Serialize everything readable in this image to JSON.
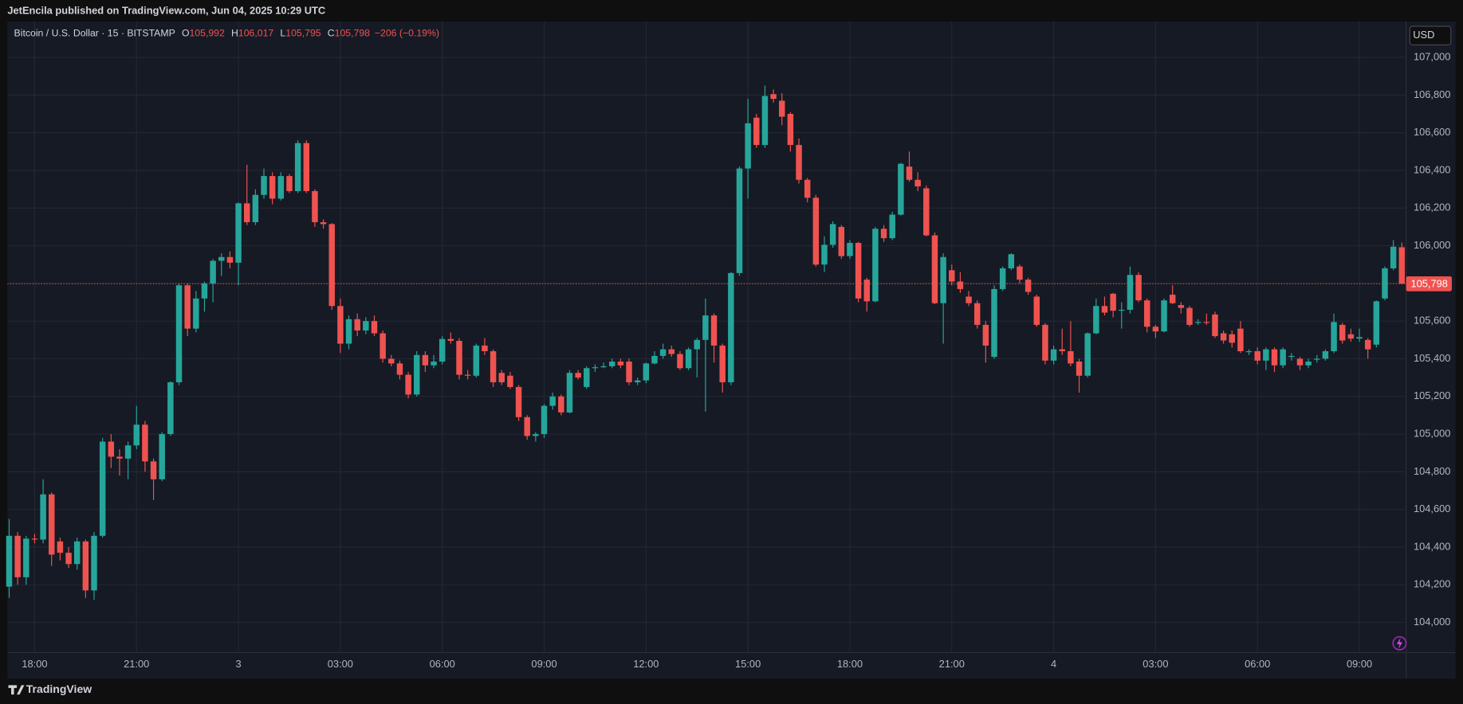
{
  "header": {
    "published": "JetEncila published on TradingView.com, Jun 04, 2025 10:29 UTC",
    "brand": "TradingView"
  },
  "chart_data": {
    "type": "candlestick",
    "symbol": "Bitcoin / U.S. Dollar · 15 · BITSTAMP",
    "ohlc": [
      {
        "key": "O",
        "text": "105,992"
      },
      {
        "key": "H",
        "text": "106,017"
      },
      {
        "key": "L",
        "text": "105,795"
      },
      {
        "key": "C",
        "text": "105,798"
      }
    ],
    "change": "−206 (−0.19%)",
    "currency": "USD",
    "up_color": "#26a69a",
    "down_color": "#ef5350",
    "last_price": {
      "value": 105798,
      "label": "105,798"
    },
    "grid": true,
    "xlim": [
      -0.2,
      164.5
    ],
    "ylim": [
      103840,
      107190
    ],
    "xticks": [
      {
        "value": 3,
        "label": "18:00"
      },
      {
        "value": 15,
        "label": "21:00"
      },
      {
        "value": 27,
        "label": "3"
      },
      {
        "value": 39,
        "label": "03:00"
      },
      {
        "value": 51,
        "label": "06:00"
      },
      {
        "value": 63,
        "label": "09:00"
      },
      {
        "value": 75,
        "label": "12:00"
      },
      {
        "value": 87,
        "label": "15:00"
      },
      {
        "value": 99,
        "label": "18:00"
      },
      {
        "value": 111,
        "label": "21:00"
      },
      {
        "value": 123,
        "label": "4"
      },
      {
        "value": 135,
        "label": "03:00"
      },
      {
        "value": 147,
        "label": "06:00"
      },
      {
        "value": 159,
        "label": "09:00"
      }
    ],
    "yticks": [
      {
        "value": 104000,
        "label": "104,000"
      },
      {
        "value": 104200,
        "label": "104,200"
      },
      {
        "value": 104400,
        "label": "104,400"
      },
      {
        "value": 104600,
        "label": "104,600"
      },
      {
        "value": 104800,
        "label": "104,800"
      },
      {
        "value": 105000,
        "label": "105,000"
      },
      {
        "value": 105200,
        "label": "105,200"
      },
      {
        "value": 105400,
        "label": "105,400"
      },
      {
        "value": 105600,
        "label": "105,600"
      },
      {
        "value": 105800,
        "label": "105,800"
      },
      {
        "value": 106000,
        "label": "106,000"
      },
      {
        "value": 106200,
        "label": "106,200"
      },
      {
        "value": 106400,
        "label": "106,400"
      },
      {
        "value": 106600,
        "label": "106,600"
      },
      {
        "value": 106800,
        "label": "106,800"
      },
      {
        "value": 107000,
        "label": "107,000"
      }
    ],
    "candles": [
      [
        104190,
        104550,
        104130,
        104460
      ],
      [
        104460,
        104480,
        104200,
        104240
      ],
      [
        104240,
        104460,
        104200,
        104445
      ],
      [
        104445,
        104470,
        104420,
        104440
      ],
      [
        104440,
        104760,
        104420,
        104680
      ],
      [
        104680,
        104690,
        104300,
        104360
      ],
      [
        104430,
        104450,
        104330,
        104370
      ],
      [
        104370,
        104400,
        104290,
        104310
      ],
      [
        104310,
        104450,
        104280,
        104430
      ],
      [
        104430,
        104440,
        104130,
        104170
      ],
      [
        104170,
        104480,
        104120,
        104460
      ],
      [
        104460,
        104980,
        104450,
        104960
      ],
      [
        104960,
        105000,
        104820,
        104880
      ],
      [
        104880,
        104920,
        104780,
        104870
      ],
      [
        104870,
        104960,
        104760,
        104940
      ],
      [
        104940,
        105150,
        104920,
        105050
      ],
      [
        105050,
        105070,
        104800,
        104855
      ],
      [
        104855,
        104870,
        104650,
        104760
      ],
      [
        104760,
        105010,
        104750,
        105000
      ],
      [
        105000,
        105280,
        104990,
        105275
      ],
      [
        105275,
        105800,
        105260,
        105790
      ],
      [
        105790,
        105800,
        105520,
        105560
      ],
      [
        105560,
        105760,
        105540,
        105720
      ],
      [
        105720,
        105810,
        105650,
        105800
      ],
      [
        105800,
        105930,
        105700,
        105920
      ],
      [
        105920,
        105960,
        105840,
        105940
      ],
      [
        105940,
        105970,
        105880,
        105910
      ],
      [
        105910,
        106230,
        105790,
        106225
      ],
      [
        106225,
        106430,
        106110,
        106125
      ],
      [
        106125,
        106300,
        106110,
        106270
      ],
      [
        106270,
        106410,
        106250,
        106370
      ],
      [
        106370,
        106390,
        106220,
        106250
      ],
      [
        106250,
        106390,
        106240,
        106370
      ],
      [
        106370,
        106380,
        106280,
        106290
      ],
      [
        106290,
        106560,
        106280,
        106545
      ],
      [
        106545,
        106560,
        106280,
        106290
      ],
      [
        106290,
        106300,
        106100,
        106125
      ],
      [
        106125,
        106140,
        106090,
        106115
      ],
      [
        106115,
        106120,
        105660,
        105680
      ],
      [
        105680,
        105720,
        105430,
        105480
      ],
      [
        105480,
        105630,
        105450,
        105610
      ],
      [
        105610,
        105640,
        105520,
        105550
      ],
      [
        105550,
        105620,
        105530,
        105600
      ],
      [
        105600,
        105630,
        105520,
        105535
      ],
      [
        105535,
        105550,
        105380,
        105400
      ],
      [
        105400,
        105420,
        105360,
        105375
      ],
      [
        105375,
        105390,
        105290,
        105315
      ],
      [
        105315,
        105330,
        105190,
        105210
      ],
      [
        105210,
        105440,
        105200,
        105420
      ],
      [
        105420,
        105440,
        105330,
        105365
      ],
      [
        105365,
        105420,
        105350,
        105385
      ],
      [
        105385,
        105520,
        105370,
        105505
      ],
      [
        105505,
        105540,
        105480,
        105495
      ],
      [
        105495,
        105510,
        105290,
        105315
      ],
      [
        105315,
        105340,
        105290,
        105310
      ],
      [
        105310,
        105480,
        105300,
        105470
      ],
      [
        105470,
        105510,
        105420,
        105440
      ],
      [
        105440,
        105450,
        105250,
        105275
      ],
      [
        105325,
        105340,
        105260,
        105275
      ],
      [
        105310,
        105330,
        105240,
        105250
      ],
      [
        105250,
        105260,
        105070,
        105090
      ],
      [
        105090,
        105100,
        104970,
        104990
      ],
      [
        104990,
        105010,
        104960,
        105000
      ],
      [
        105000,
        105160,
        104980,
        105150
      ],
      [
        105150,
        105220,
        105130,
        105200
      ],
      [
        105200,
        105210,
        105100,
        105115
      ],
      [
        105115,
        105340,
        105110,
        105325
      ],
      [
        105325,
        105340,
        105290,
        105300
      ],
      [
        105250,
        105360,
        105240,
        105350
      ],
      [
        105350,
        105370,
        105330,
        105355
      ],
      [
        105355,
        105380,
        105350,
        105360
      ],
      [
        105360,
        105400,
        105350,
        105385
      ],
      [
        105385,
        105400,
        105350,
        105365
      ],
      [
        105385,
        105400,
        105260,
        105275
      ],
      [
        105275,
        105300,
        105260,
        105285
      ],
      [
        105285,
        105380,
        105270,
        105375
      ],
      [
        105375,
        105440,
        105370,
        105415
      ],
      [
        105415,
        105480,
        105400,
        105450
      ],
      [
        105450,
        105470,
        105410,
        105425
      ],
      [
        105425,
        105440,
        105340,
        105350
      ],
      [
        105350,
        105460,
        105340,
        105450
      ],
      [
        105450,
        105510,
        105300,
        105500
      ],
      [
        105500,
        105720,
        105120,
        105630
      ],
      [
        105630,
        105640,
        105380,
        105470
      ],
      [
        105470,
        105480,
        105220,
        105275
      ],
      [
        105275,
        105860,
        105260,
        105855
      ],
      [
        105855,
        106420,
        105840,
        106410
      ],
      [
        106410,
        106780,
        106250,
        106650
      ],
      [
        106680,
        106700,
        106520,
        106535
      ],
      [
        106535,
        106850,
        106520,
        106795
      ],
      [
        106805,
        106830,
        106760,
        106780
      ],
      [
        106770,
        106810,
        106640,
        106685
      ],
      [
        106700,
        106710,
        106500,
        106535
      ],
      [
        106535,
        106570,
        106330,
        106350
      ],
      [
        106350,
        106360,
        106230,
        106255
      ],
      [
        106255,
        106270,
        105890,
        105900
      ],
      [
        105900,
        106050,
        105860,
        106005
      ],
      [
        106005,
        106130,
        105990,
        106115
      ],
      [
        106100,
        106110,
        105930,
        105945
      ],
      [
        105945,
        106030,
        105930,
        106015
      ],
      [
        106015,
        106020,
        105700,
        105720
      ],
      [
        105820,
        105830,
        105650,
        105705
      ],
      [
        105705,
        106100,
        105700,
        106090
      ],
      [
        106090,
        106110,
        106020,
        106040
      ],
      [
        106040,
        106180,
        106030,
        106165
      ],
      [
        106165,
        106440,
        106160,
        106435
      ],
      [
        106420,
        106500,
        106340,
        106350
      ],
      [
        106350,
        106390,
        106290,
        106315
      ],
      [
        106305,
        106320,
        106050,
        106055
      ],
      [
        106055,
        106070,
        105690,
        105695
      ],
      [
        105695,
        105960,
        105480,
        105940
      ],
      [
        105870,
        105900,
        105790,
        105810
      ],
      [
        105810,
        105860,
        105750,
        105770
      ],
      [
        105730,
        105760,
        105680,
        105695
      ],
      [
        105695,
        105710,
        105560,
        105580
      ],
      [
        105580,
        105600,
        105380,
        105470
      ],
      [
        105410,
        105790,
        105400,
        105770
      ],
      [
        105770,
        105890,
        105760,
        105880
      ],
      [
        105880,
        105960,
        105870,
        105955
      ],
      [
        105890,
        105900,
        105800,
        105820
      ],
      [
        105820,
        105830,
        105740,
        105755
      ],
      [
        105730,
        105740,
        105570,
        105580
      ],
      [
        105580,
        105590,
        105370,
        105390
      ],
      [
        105390,
        105470,
        105370,
        105450
      ],
      [
        105450,
        105560,
        105420,
        105440
      ],
      [
        105440,
        105600,
        105360,
        105375
      ],
      [
        105385,
        105400,
        105220,
        105310
      ],
      [
        105310,
        105540,
        105300,
        105535
      ],
      [
        105535,
        105720,
        105530,
        105680
      ],
      [
        105680,
        105730,
        105630,
        105645
      ],
      [
        105745,
        105750,
        105620,
        105655
      ],
      [
        105655,
        105700,
        105560,
        105660
      ],
      [
        105660,
        105890,
        105640,
        105845
      ],
      [
        105845,
        105860,
        105700,
        105710
      ],
      [
        105710,
        105720,
        105540,
        105570
      ],
      [
        105570,
        105580,
        105510,
        105545
      ],
      [
        105545,
        105720,
        105540,
        105710
      ],
      [
        105740,
        105790,
        105690,
        105695
      ],
      [
        105685,
        105700,
        105640,
        105670
      ],
      [
        105670,
        105680,
        105570,
        105580
      ],
      [
        105590,
        105610,
        105580,
        105595
      ],
      [
        105595,
        105640,
        105580,
        105590
      ],
      [
        105635,
        105650,
        105510,
        105520
      ],
      [
        105535,
        105550,
        105480,
        105497
      ],
      [
        105530,
        105550,
        105460,
        105485
      ],
      [
        105560,
        105600,
        105430,
        105440
      ],
      [
        105438,
        105450,
        105420,
        105440
      ],
      [
        105440,
        105460,
        105370,
        105390
      ],
      [
        105390,
        105460,
        105340,
        105450
      ],
      [
        105450,
        105460,
        105330,
        105365
      ],
      [
        105365,
        105460,
        105350,
        105450
      ],
      [
        105410,
        105430,
        105390,
        105415
      ],
      [
        105400,
        105410,
        105340,
        105365
      ],
      [
        105365,
        105400,
        105350,
        105385
      ],
      [
        105395,
        105420,
        105380,
        105400
      ],
      [
        105400,
        105450,
        105390,
        105440
      ],
      [
        105440,
        105640,
        105430,
        105595
      ],
      [
        105580,
        105590,
        105480,
        105497
      ],
      [
        105530,
        105560,
        105490,
        105507
      ],
      [
        105507,
        105560,
        105490,
        105515
      ],
      [
        105500,
        105510,
        105400,
        105450
      ],
      [
        105475,
        105710,
        105460,
        105705
      ],
      [
        105720,
        105890,
        105710,
        105880
      ],
      [
        105880,
        106030,
        105870,
        105995
      ],
      [
        105992,
        106017,
        105795,
        105798
      ]
    ]
  }
}
